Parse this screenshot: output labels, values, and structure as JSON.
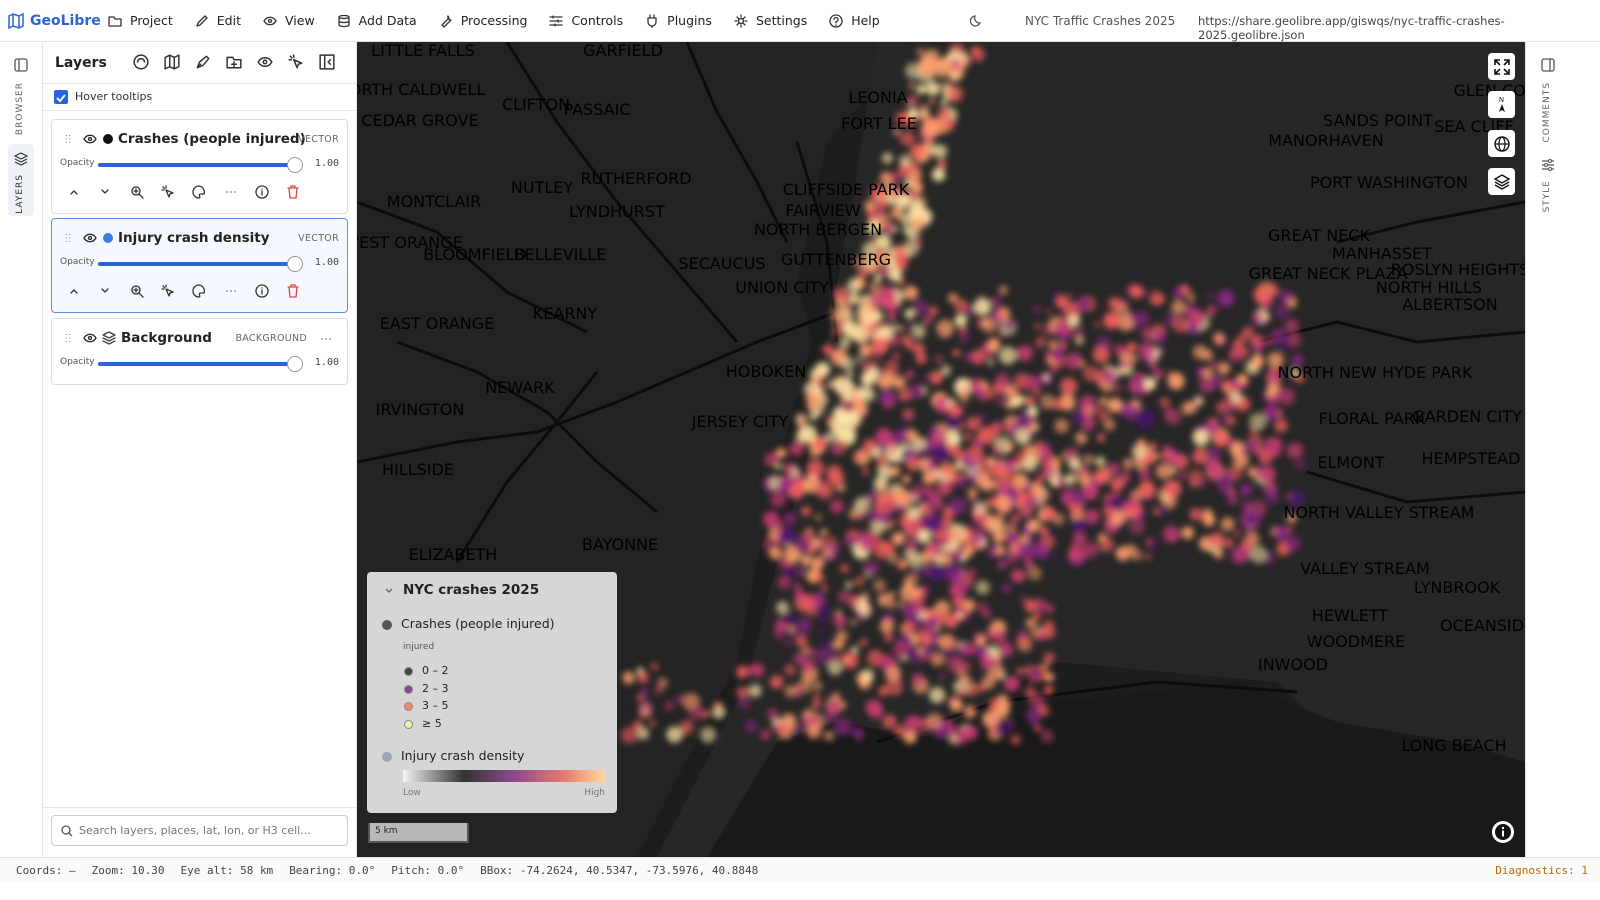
{
  "app": {
    "name": "GeoLibre",
    "menu": [
      "Project",
      "Edit",
      "View",
      "Add Data",
      "Processing",
      "Controls",
      "Plugins",
      "Settings",
      "Help"
    ],
    "project_title": "NYC Traffic Crashes 2025",
    "url": "https://share.geolibre.app/giswqs/nyc-traffic-crashes-2025.geolibre.json"
  },
  "rails": {
    "left": [
      "BROWSER",
      "LAYERS"
    ],
    "right": [
      "COMMENTS",
      "STYLE"
    ]
  },
  "layers_panel": {
    "title": "Layers",
    "hover_tooltips": "Hover tooltips",
    "opacity_label": "Opacity",
    "layers": [
      {
        "name": "Crashes (people injured)",
        "type": "VECTOR",
        "opacity": "1.00"
      },
      {
        "name": "Injury crash density",
        "type": "VECTOR",
        "opacity": "1.00"
      },
      {
        "name": "Background",
        "type": "BACKGROUND",
        "opacity": "1.00"
      }
    ],
    "search_placeholder": "Search layers, places, lat, lon, or H3 cell..."
  },
  "legend": {
    "title": "NYC crashes 2025",
    "points_layer": "Crashes (people injured)",
    "points_field": "injured",
    "classes": [
      "0 – 2",
      "2 – 3",
      "3 – 5",
      "≥ 5"
    ],
    "density_layer": "Injury crash density",
    "low": "Low",
    "high": "High"
  },
  "map": {
    "compass": "N",
    "scale": "5 km",
    "labels": [
      "LITTLE FALLS",
      "GARFIELD",
      "NORTH CALDWELL",
      "CLIFTON",
      "PASSAIC",
      "CEDAR GROVE",
      "RUTHERFORD",
      "NUTLEY",
      "MONTCLAIR",
      "LYNDHURST",
      "WEST ORANGE",
      "BLOOMFIELD",
      "BELLEVILLE",
      "SECAUCUS",
      "EAST ORANGE",
      "KEARNY",
      "NEWARK",
      "HOBOKEN",
      "IRVINGTON",
      "JERSEY CITY",
      "HILLSIDE",
      "ELIZABETH",
      "BAYONNE",
      "FORT LEE",
      "LEONIA",
      "CLIFFSIDE PARK",
      "FAIRVIEW",
      "NORTH BERGEN",
      "GUTTENBERG",
      "UNION CITY",
      "GLEN COVE",
      "SANDS POINT",
      "SEA CLIFF",
      "MANORHAVEN",
      "PORT WASHINGTON",
      "GREAT NECK",
      "MANHASSET",
      "GREAT NECK PLAZA",
      "ROSLYN HEIGHTS",
      "NORTH HILLS",
      "ALBERTSON",
      "NORTH NEW HYDE PARK",
      "FLORAL PARK",
      "GARDEN CITY",
      "ELMONT",
      "HEMPSTEAD",
      "NORTH VALLEY STREAM",
      "VALLEY STREAM",
      "LYNBROOK",
      "HEWLETT",
      "OCEANSIDE",
      "WOODMERE",
      "INWOOD",
      "LONG BEACH"
    ]
  },
  "status": {
    "items": [
      "Coords: —",
      "Zoom: 10.30",
      "Eye alt: 58 km",
      "Bearing: 0.0°",
      "Pitch: 0.0°",
      "BBox: -74.2624, 40.5347, -73.5976, 40.8848"
    ],
    "diagnostics": "Diagnostics: 1"
  }
}
